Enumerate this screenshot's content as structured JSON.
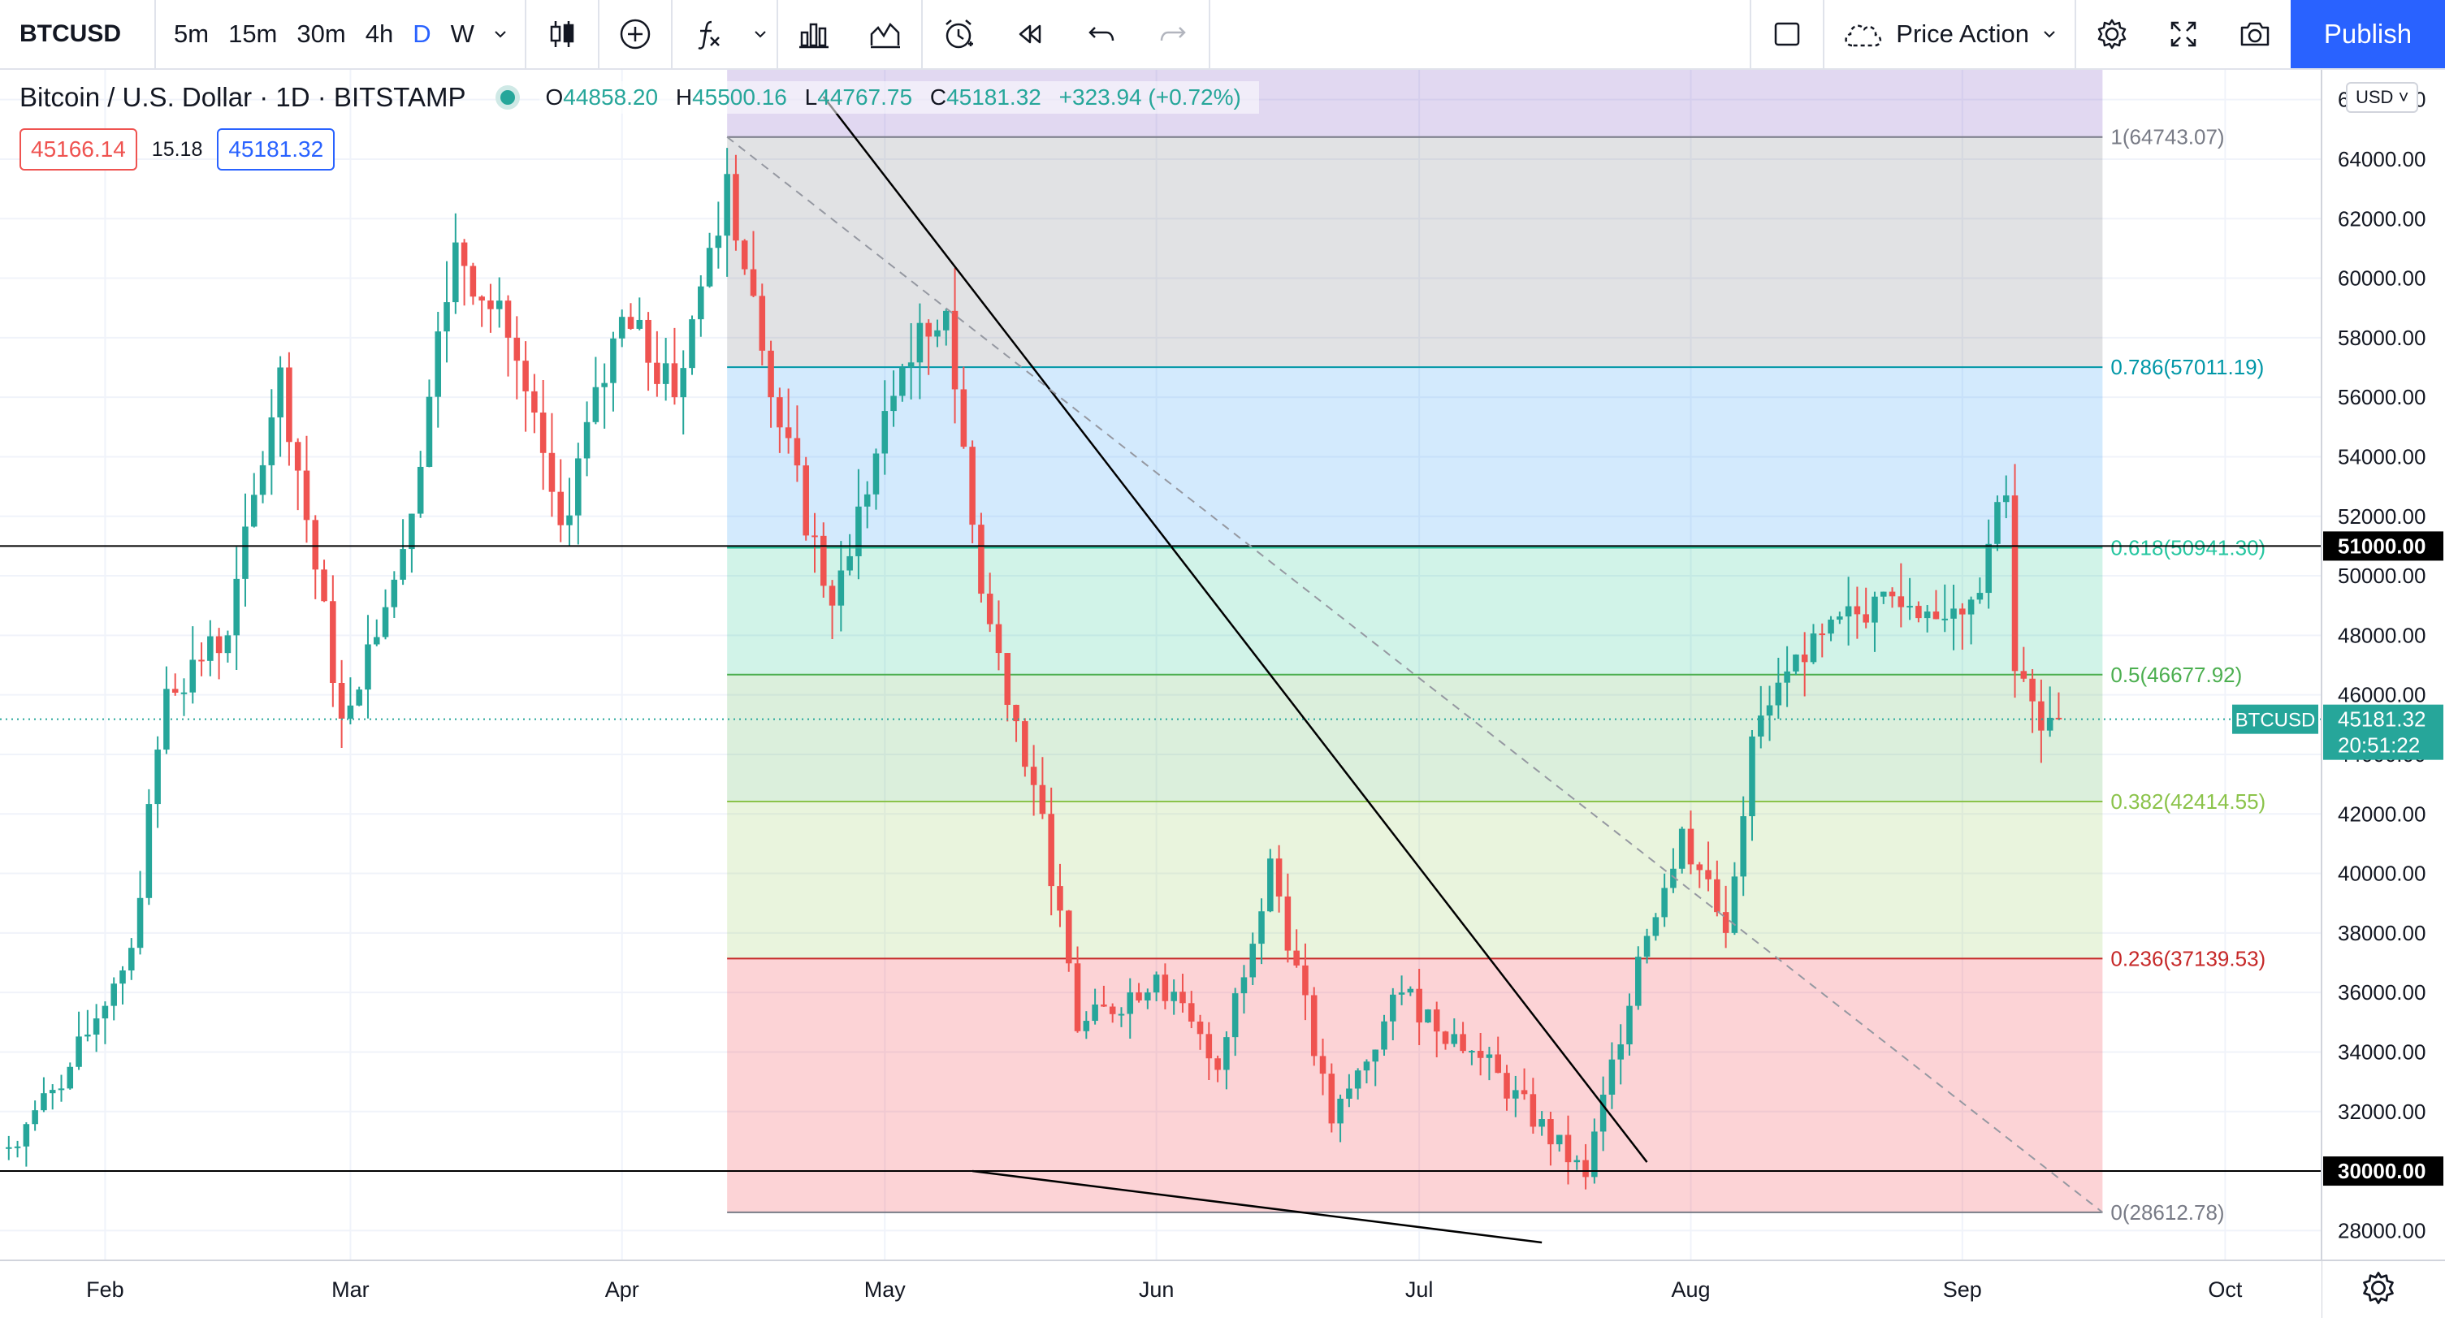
{
  "toolbar": {
    "symbol": "BTCUSD",
    "intervals": [
      "5m",
      "15m",
      "30m",
      "4h",
      "D",
      "W"
    ],
    "active_interval": "D",
    "layout_name": "Price Action",
    "publish_label": "Publish",
    "icons": [
      "candles-icon",
      "add-indicator-icon",
      "fx-indicators-icon",
      "chevron-down-icon",
      "bar-style-icon",
      "templates-icon",
      "alert-icon",
      "replay-icon",
      "undo-icon",
      "redo-icon",
      "square-icon",
      "cloud-layout-icon",
      "gear-icon",
      "fullscreen-icon",
      "camera-icon"
    ]
  },
  "legend": {
    "title": "Bitcoin / U.S. Dollar · 1D · BITSTAMP",
    "open_label": "O",
    "open": "44858.20",
    "high_label": "H",
    "high": "45500.16",
    "low_label": "L",
    "low": "44767.75",
    "close_label": "C",
    "close": "45181.32",
    "change": "+323.94 (+0.72%)"
  },
  "price_boxes": {
    "sell": "45166.14",
    "spread": "15.18",
    "buy": "45181.32"
  },
  "currency_selector": "USD",
  "colors": {
    "up": "#26a69a",
    "down": "#ef5350",
    "accent": "#2962ff"
  },
  "chart_data": {
    "type": "candlestick",
    "symbol": "BTCUSD",
    "title": "Bitcoin / U.S. Dollar · 1D · BITSTAMP",
    "x_ticks": [
      "Feb",
      "Mar",
      "Apr",
      "May",
      "Jun",
      "Jul",
      "Aug",
      "Sep",
      "Oct"
    ],
    "x_range": [
      "2021-01-20",
      "2021-10-12"
    ],
    "y_ticks": [
      "28000.00",
      "30000.00",
      "32000.00",
      "34000.00",
      "36000.00",
      "38000.00",
      "40000.00",
      "42000.00",
      "44000.00",
      "46000.00",
      "48000.00",
      "50000.00",
      "52000.00",
      "54000.00",
      "56000.00",
      "58000.00",
      "60000.00",
      "62000.00",
      "64000.00",
      "66000.00"
    ],
    "ylim": [
      27000,
      67000
    ],
    "series_close_path": [
      [
        "2021-01-21",
        30800
      ],
      [
        "2021-01-28",
        33500
      ],
      [
        "2021-02-04",
        37500
      ],
      [
        "2021-02-08",
        46200
      ],
      [
        "2021-02-15",
        48000
      ],
      [
        "2021-02-21",
        57000
      ],
      [
        "2021-02-28",
        45200
      ],
      [
        "2021-03-07",
        50900
      ],
      [
        "2021-03-13",
        61200
      ],
      [
        "2021-03-19",
        58000
      ],
      [
        "2021-03-25",
        51700
      ],
      [
        "2021-04-01",
        58700
      ],
      [
        "2021-04-07",
        56000
      ],
      [
        "2021-04-13",
        63500
      ],
      [
        "2021-04-18",
        56000
      ],
      [
        "2021-04-25",
        49000
      ],
      [
        "2021-05-03",
        57000
      ],
      [
        "2021-05-08",
        58900
      ],
      [
        "2021-05-12",
        49400
      ],
      [
        "2021-05-19",
        42000
      ],
      [
        "2021-05-23",
        34700
      ],
      [
        "2021-06-01",
        36600
      ],
      [
        "2021-06-08",
        33400
      ],
      [
        "2021-06-14",
        40500
      ],
      [
        "2021-06-21",
        31600
      ],
      [
        "2021-06-29",
        36000
      ],
      [
        "2021-07-08",
        33800
      ],
      [
        "2021-07-20",
        29800
      ],
      [
        "2021-07-26",
        37200
      ],
      [
        "2021-07-31",
        41500
      ],
      [
        "2021-08-05",
        38000
      ],
      [
        "2021-08-08",
        44600
      ],
      [
        "2021-08-14",
        47100
      ],
      [
        "2021-08-22",
        49300
      ],
      [
        "2021-08-28",
        48800
      ],
      [
        "2021-09-02",
        49200
      ],
      [
        "2021-09-06",
        52700
      ],
      [
        "2021-09-07",
        46800
      ],
      [
        "2021-09-10",
        44800
      ],
      [
        "2021-09-12",
        45181.32
      ]
    ],
    "horizontal_lines": [
      {
        "price": 51000,
        "label": "51000.00"
      },
      {
        "price": 30000,
        "label": "30000.00"
      }
    ],
    "fibonacci": {
      "start_date": "2021-04-13",
      "end_date": "2021-09-17",
      "levels": [
        {
          "ratio": "1",
          "price": 64743.07,
          "label": "1(64743.07)"
        },
        {
          "ratio": "0.786",
          "price": 57011.19,
          "label": "0.786(57011.19)"
        },
        {
          "ratio": "0.618",
          "price": 50941.3,
          "label": "0.618(50941.30)"
        },
        {
          "ratio": "0.5",
          "price": 46677.92,
          "label": "0.5(46677.92)"
        },
        {
          "ratio": "0.382",
          "price": 42414.55,
          "label": "0.382(42414.55)"
        },
        {
          "ratio": "0.236",
          "price": 37139.53,
          "label": "0.236(37139.53)"
        },
        {
          "ratio": "0",
          "price": 28612.78,
          "label": "0(28612.78)"
        }
      ]
    },
    "trendlines": [
      {
        "style": "solid",
        "from": [
          "2021-04-24",
          66100
        ],
        "to": [
          "2021-07-27",
          30300
        ]
      },
      {
        "style": "dashed",
        "from": [
          "2021-04-13",
          64743
        ],
        "to": [
          "2021-09-17",
          28612
        ]
      },
      {
        "style": "solid",
        "from": [
          "2021-05-11",
          30000
        ],
        "to": [
          "2021-07-15",
          27600
        ]
      }
    ],
    "current_price": {
      "symbol_label": "BTCUSD",
      "price": "45181.32",
      "countdown": "20:51:22"
    },
    "grid": true,
    "legend_position": "top-left"
  }
}
